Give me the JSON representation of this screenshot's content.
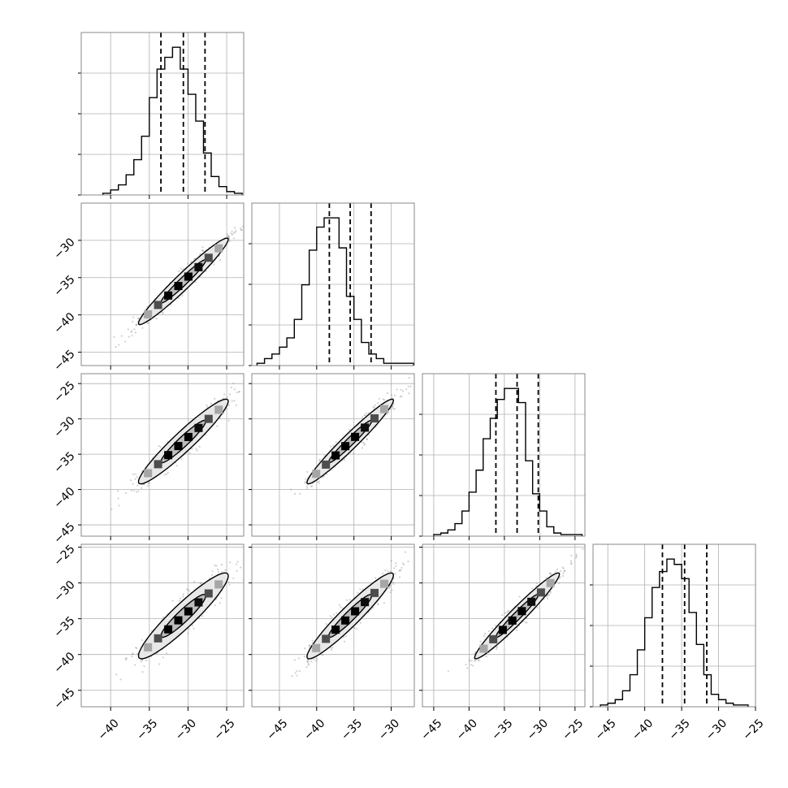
{
  "chart_data": {
    "type": "corner",
    "grid": true,
    "histogram_y_ticks_labeled": false,
    "params": [
      {
        "xlim": [
          -43.8,
          -22.8
        ],
        "xticks": [
          -40,
          -35,
          -30,
          -25
        ],
        "xtick_labels": [
          "−40",
          "−35",
          "−30",
          "−25"
        ]
      },
      {
        "xlim": [
          -48.7,
          -26.9
        ],
        "xticks": [
          -45,
          -40,
          -35,
          -30
        ],
        "xtick_labels": [
          "−45",
          "−40",
          "−35",
          "−30"
        ],
        "ylim": [
          -46.8,
          -25.0
        ],
        "yticks": [
          -45,
          -40,
          -35,
          -30
        ],
        "ytick_labels": [
          "−45",
          "−40",
          "−35",
          "−30"
        ]
      },
      {
        "xlim": [
          -46.6,
          -23.6
        ],
        "xticks": [
          -45,
          -40,
          -35,
          -30,
          -25
        ],
        "xtick_labels": [
          "−45",
          "−40",
          "−35",
          "−30",
          "−25"
        ],
        "ylim": [
          -46.6,
          -23.6
        ],
        "yticks": [
          -45,
          -40,
          -35,
          -30,
          -25
        ],
        "ytick_labels": [
          "−45",
          "−40",
          "−35",
          "−30",
          "−25"
        ]
      },
      {
        "xlim": [
          -47.0,
          -25.0
        ],
        "xticks": [
          -45,
          -40,
          -35,
          -30,
          -25
        ],
        "xtick_labels": [
          "−45",
          "−40",
          "−35",
          "−30",
          "−25"
        ],
        "ylim": [
          -47.3,
          -24.6
        ],
        "yticks": [
          -45,
          -40,
          -35,
          -30,
          -25
        ],
        "ytick_labels": [
          "−45",
          "−40",
          "−35",
          "−30",
          "−25"
        ]
      }
    ],
    "histograms": [
      {
        "bins": [
          -41.0,
          -40.0,
          -39.0,
          -38.0,
          -37.0,
          -36.0,
          -35.0,
          -34.0,
          -33.0,
          -32.0,
          -31.0,
          -30.0,
          -29.0,
          -28.0,
          -27.0,
          -26.0,
          -25.0,
          -24.0,
          -23.0
        ],
        "counts": [
          1,
          3,
          6,
          12,
          21,
          35,
          58,
          75,
          82,
          88,
          75,
          60,
          44,
          25,
          11,
          5,
          2,
          1
        ],
        "quantiles": [
          -33.5,
          -30.6,
          -27.8
        ]
      },
      {
        "bins": [
          -48.0,
          -47.0,
          -46.0,
          -45.0,
          -44.0,
          -43.0,
          -42.0,
          -41.0,
          -40.0,
          -39.0,
          -38.0,
          -37.0,
          -36.0,
          -35.0,
          -34.0,
          -33.0,
          -32.0,
          -31.0,
          -30.0,
          -29.0,
          -28.0,
          -27.0
        ],
        "counts": [
          1,
          3,
          5,
          8,
          12,
          20,
          35,
          50,
          60,
          64,
          64,
          51,
          30,
          20,
          10,
          5,
          3,
          1,
          1,
          1,
          1
        ],
        "quantiles": [
          -38.3,
          -35.5,
          -32.7
        ]
      },
      {
        "bins": [
          -45.0,
          -44.0,
          -43.0,
          -42.0,
          -41.0,
          -40.0,
          -39.0,
          -38.0,
          -37.0,
          -36.0,
          -35.0,
          -34.0,
          -33.0,
          -32.0,
          -31.0,
          -30.0,
          -29.0,
          -28.0,
          -27.0,
          -26.0,
          -25.0,
          -24.0
        ],
        "counts": [
          1,
          2,
          4,
          8,
          16,
          28,
          42,
          62,
          75,
          87,
          94,
          94,
          85,
          48,
          27,
          16,
          6,
          2,
          1,
          1,
          1
        ],
        "quantiles": [
          -36.2,
          -33.2,
          -30.2
        ]
      },
      {
        "bins": [
          -46.0,
          -45.0,
          -44.0,
          -43.0,
          -42.0,
          -41.0,
          -40.0,
          -39.0,
          -38.0,
          -37.0,
          -36.0,
          -35.0,
          -34.0,
          -33.0,
          -32.0,
          -31.0,
          -30.0,
          -29.0,
          -28.0,
          -27.0,
          -26.0
        ],
        "counts": [
          1,
          2,
          4,
          9,
          18,
          32,
          50,
          67,
          76,
          83,
          80,
          72,
          53,
          35,
          18,
          7,
          4,
          2,
          1,
          1
        ],
        "quantiles": [
          -37.6,
          -34.6,
          -31.6
        ]
      }
    ],
    "scatter": {
      "samples_per_panel": 700,
      "point_color": "#9a9a9a",
      "pairs": [
        {
          "row": 1,
          "col": 0,
          "means": [
            -30.6,
            -35.5
          ],
          "sds": [
            2.9,
            2.9
          ],
          "rho": 0.97
        },
        {
          "row": 2,
          "col": 0,
          "means": [
            -30.6,
            -33.2
          ],
          "sds": [
            2.9,
            3.0
          ],
          "rho": 0.95
        },
        {
          "row": 2,
          "col": 1,
          "means": [
            -35.5,
            -33.2
          ],
          "sds": [
            2.9,
            3.0
          ],
          "rho": 0.97
        },
        {
          "row": 3,
          "col": 0,
          "means": [
            -30.6,
            -34.6
          ],
          "sds": [
            2.9,
            3.0
          ],
          "rho": 0.93
        },
        {
          "row": 3,
          "col": 1,
          "means": [
            -35.5,
            -34.6
          ],
          "sds": [
            2.9,
            3.0
          ],
          "rho": 0.95
        },
        {
          "row": 3,
          "col": 2,
          "means": [
            -33.2,
            -34.6
          ],
          "sds": [
            3.0,
            3.0
          ],
          "rho": 0.97
        }
      ],
      "density_cells": [
        0.35,
        0.7,
        1.0,
        1.0,
        1.0,
        0.95,
        0.7,
        0.35
      ],
      "contour_levels_sigma": [
        1.0,
        2.0
      ]
    },
    "colors": {
      "line": "#000000",
      "grid": "#b0b0b0",
      "frame": "#888888",
      "fill_outer": "#e8e8e8",
      "fill_inner": "#bdbdbd"
    }
  }
}
